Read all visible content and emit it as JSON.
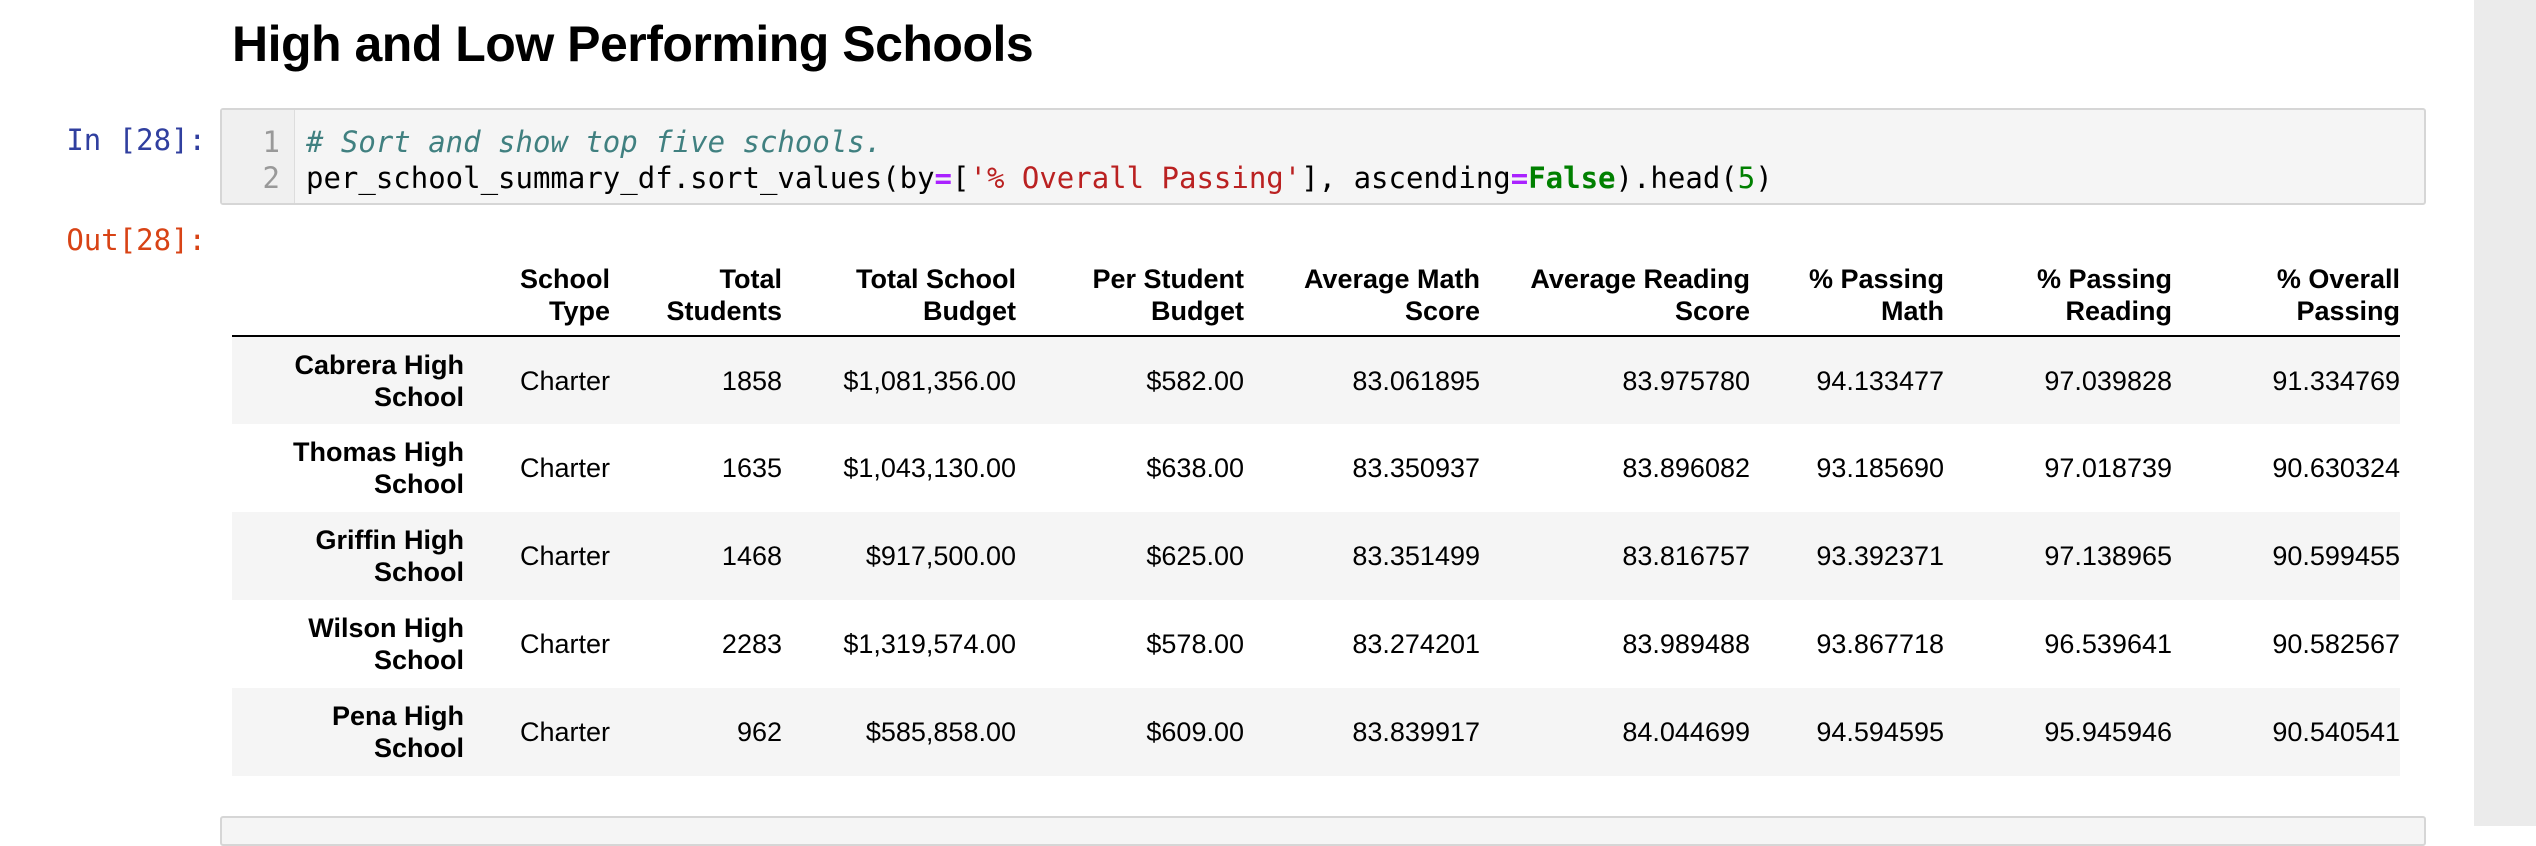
{
  "notebook": {
    "heading": "High and Low Performing Schools",
    "cell": {
      "in_prompt": "In [28]:",
      "out_prompt": "Out[28]:",
      "line_numbers": [
        "1",
        "2"
      ],
      "code": {
        "comment": "# Sort and show top five schools.",
        "line2_parts": [
          "per_school_summary_df.sort_values(by",
          "=",
          "[",
          "'% Overall Passing'",
          "], ascending",
          "=",
          "False",
          ").head(",
          "5",
          ")"
        ]
      }
    }
  },
  "table": {
    "columns": [
      [
        "School",
        "Type"
      ],
      [
        "Total",
        "Students"
      ],
      [
        "Total School",
        "Budget"
      ],
      [
        "Per Student",
        "Budget"
      ],
      [
        "Average Math",
        "Score"
      ],
      [
        "Average Reading",
        "Score"
      ],
      [
        "% Passing",
        "Math"
      ],
      [
        "% Passing",
        "Reading"
      ],
      [
        "% Overall",
        "Passing"
      ]
    ],
    "rows": [
      {
        "index": [
          "Cabrera High",
          "School"
        ],
        "values": [
          "Charter",
          "1858",
          "$1,081,356.00",
          "$582.00",
          "83.061895",
          "83.975780",
          "94.133477",
          "97.039828",
          "91.334769"
        ]
      },
      {
        "index": [
          "Thomas High",
          "School"
        ],
        "values": [
          "Charter",
          "1635",
          "$1,043,130.00",
          "$638.00",
          "83.350937",
          "83.896082",
          "93.185690",
          "97.018739",
          "90.630324"
        ]
      },
      {
        "index": [
          "Griffin High",
          "School"
        ],
        "values": [
          "Charter",
          "1468",
          "$917,500.00",
          "$625.00",
          "83.351499",
          "83.816757",
          "93.392371",
          "97.138965",
          "90.599455"
        ]
      },
      {
        "index": [
          "Wilson High",
          "School"
        ],
        "values": [
          "Charter",
          "2283",
          "$1,319,574.00",
          "$578.00",
          "83.274201",
          "83.989488",
          "93.867718",
          "96.539641",
          "90.582567"
        ]
      },
      {
        "index": [
          "Pena High",
          "School"
        ],
        "values": [
          "Charter",
          "962",
          "$585,858.00",
          "$609.00",
          "83.839917",
          "84.044699",
          "94.594595",
          "95.945946",
          "90.540541"
        ]
      }
    ]
  }
}
